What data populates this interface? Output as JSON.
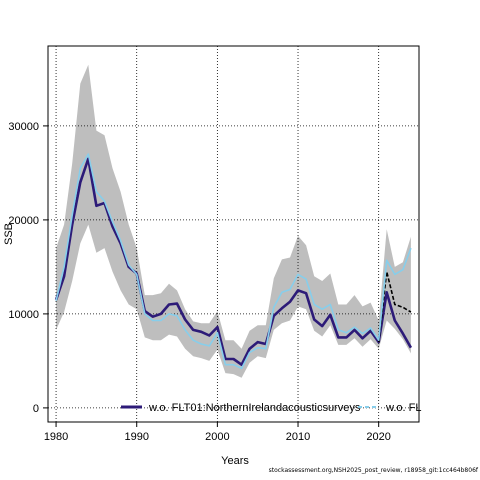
{
  "chart_data": {
    "type": "line",
    "xlabel": "Years",
    "ylabel": "SSB",
    "xlim": [
      1979,
      2025
    ],
    "ylim": [
      -1500,
      38500
    ],
    "x_ticks": [
      1980,
      1990,
      2000,
      2010,
      2020
    ],
    "y_ticks": [
      0,
      10000,
      20000,
      30000
    ],
    "grid": true,
    "legend_position": "bottom",
    "colors": {
      "band": "#bebebe",
      "dark_line": "#2d1b78",
      "light_line": "#87ceeb",
      "dashed_line": "#000000",
      "grid": "#000000"
    },
    "series": [
      {
        "name": "w.o. FLT01:NorthernIrelandacousticsurveys",
        "style": "solid-dark",
        "x": [
          1980,
          1981,
          1982,
          1983,
          1984,
          1985,
          1986,
          1987,
          1988,
          1989,
          1990,
          1991,
          1992,
          1993,
          1994,
          1995,
          1996,
          1997,
          1998,
          1999,
          2000,
          2001,
          2002,
          2003,
          2004,
          2005,
          2006,
          2007,
          2008,
          2009,
          2010,
          2011,
          2012,
          2013,
          2014,
          2015,
          2016,
          2017,
          2018,
          2019,
          2020,
          2021,
          2022,
          2023,
          2024
        ],
        "values": [
          11500,
          14000,
          19500,
          24000,
          26500,
          21500,
          21800,
          19300,
          17500,
          15000,
          14300,
          10300,
          9700,
          10000,
          11000,
          11100,
          9400,
          8300,
          8100,
          7700,
          8600,
          5200,
          5200,
          4600,
          6300,
          7000,
          6800,
          9800,
          10600,
          11300,
          12500,
          12200,
          9400,
          8700,
          9900,
          7500,
          7500,
          8300,
          7400,
          8200,
          7000,
          12300,
          9300,
          7900,
          6400
        ]
      },
      {
        "name": "w.o. FL",
        "style": "solid-light",
        "x": [
          1980,
          1981,
          1982,
          1983,
          1984,
          1985,
          1986,
          1987,
          1988,
          1989,
          1990,
          1991,
          1992,
          1993,
          1994,
          1995,
          1996,
          1997,
          1998,
          1999,
          2000,
          2001,
          2002,
          2003,
          2004,
          2005,
          2006,
          2007,
          2008,
          2009,
          2010,
          2011,
          2012,
          2013,
          2014,
          2015,
          2016,
          2017,
          2018,
          2019,
          2020,
          2021,
          2022,
          2023,
          2024
        ],
        "values": [
          11400,
          15000,
          20500,
          25500,
          27000,
          23000,
          22000,
          19800,
          17800,
          15200,
          14200,
          10000,
          9300,
          9300,
          10000,
          9800,
          8300,
          7200,
          6800,
          6600,
          8000,
          4600,
          4600,
          4200,
          5900,
          6400,
          6300,
          10700,
          12300,
          12600,
          14200,
          13700,
          11000,
          10500,
          11000,
          8300,
          8000,
          8600,
          7900,
          8500,
          7200,
          15700,
          14200,
          14700,
          17000
        ]
      },
      {
        "name": "",
        "style": "dashed",
        "x": [
          2020,
          2021,
          2022,
          2023,
          2024
        ],
        "values": [
          7000,
          14500,
          11000,
          10700,
          10200
        ]
      }
    ],
    "band": {
      "x": [
        1980,
        1981,
        1982,
        1983,
        1984,
        1985,
        1986,
        1987,
        1988,
        1989,
        1990,
        1991,
        1992,
        1993,
        1994,
        1995,
        1996,
        1997,
        1998,
        1999,
        2000,
        2001,
        2002,
        2003,
        2004,
        2005,
        2006,
        2007,
        2008,
        2009,
        2010,
        2011,
        2012,
        2013,
        2014,
        2015,
        2016,
        2017,
        2018,
        2019,
        2020,
        2021,
        2022,
        2023,
        2024
      ],
      "upper": [
        17000,
        19500,
        26000,
        34500,
        36500,
        29500,
        29000,
        25500,
        23000,
        19500,
        17000,
        12000,
        12000,
        12200,
        13200,
        12500,
        10500,
        9200,
        9000,
        9000,
        10300,
        7200,
        7200,
        6300,
        8200,
        8800,
        8800,
        13800,
        15800,
        16000,
        18300,
        17300,
        14000,
        13500,
        14300,
        11000,
        11000,
        12000,
        10800,
        11200,
        9300,
        19000,
        15000,
        15500,
        18200
      ],
      "lower": [
        8300,
        10200,
        13500,
        17500,
        19500,
        16500,
        17000,
        14500,
        12500,
        11000,
        10500,
        7500,
        7200,
        7200,
        7800,
        7600,
        6300,
        5500,
        5300,
        5000,
        6200,
        3700,
        3600,
        3200,
        4800,
        5500,
        5300,
        8300,
        9000,
        9300,
        10800,
        10500,
        8200,
        7600,
        8800,
        6700,
        6700,
        7400,
        6500,
        7300,
        6300,
        9300,
        8400,
        7300,
        5800
      ]
    }
  },
  "footer": {
    "source": "stockassessment.org,NSH2025_post_review, r18958_git:1cc464b806f"
  }
}
